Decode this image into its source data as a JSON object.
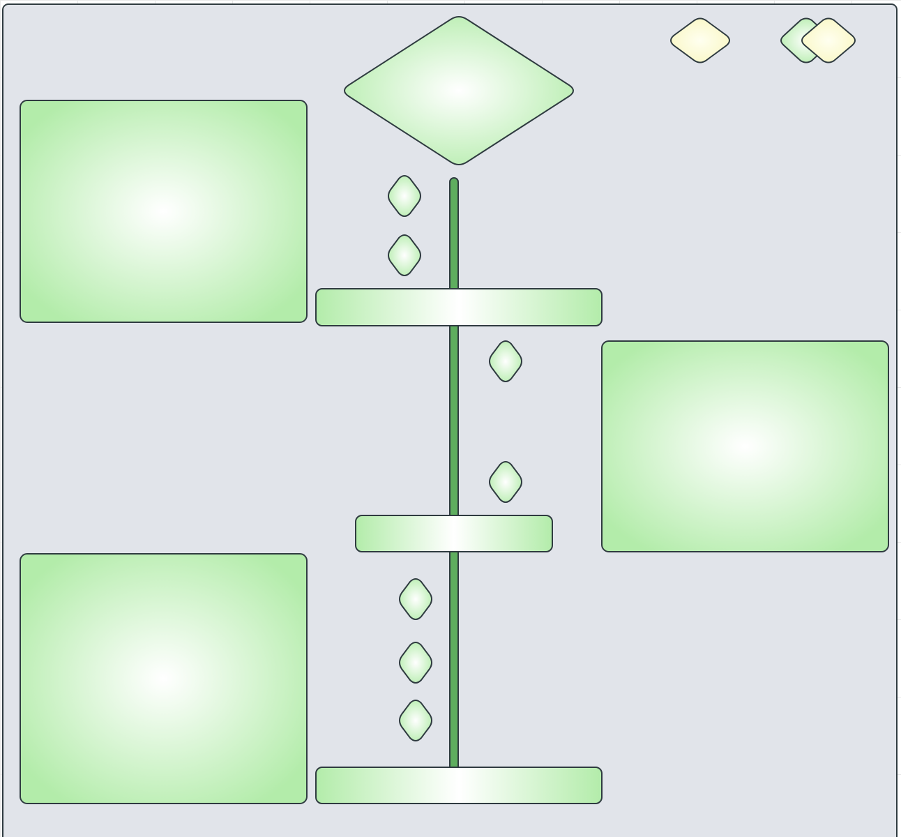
{
  "diagram": {
    "type": "activity-diagram",
    "colors": {
      "canvas_bg": "#ffffff",
      "grid": "#e8e8e8",
      "pool_fill": "#e1e4ea",
      "stroke": "#2f3b40",
      "node_center": "#ffffff",
      "node_edge": "#b3ecaa",
      "bar": "#5fae5f",
      "accent_center": "#fffff0",
      "accent_edge": "#f9f7c3"
    },
    "nodes": [
      {
        "id": "container",
        "kind": "container"
      },
      {
        "id": "legend-decision-yellow",
        "kind": "decision",
        "variant": "accent"
      },
      {
        "id": "legend-decision-green",
        "kind": "decision"
      },
      {
        "id": "legend-decision-yellow-front",
        "kind": "decision",
        "variant": "accent"
      },
      {
        "id": "start-decision",
        "kind": "decision"
      },
      {
        "id": "activity-top-left",
        "kind": "activity"
      },
      {
        "id": "activity-right",
        "kind": "activity"
      },
      {
        "id": "activity-bottom-left",
        "kind": "activity"
      },
      {
        "id": "sync-bar-1",
        "kind": "fork-join"
      },
      {
        "id": "sync-bar-2",
        "kind": "fork-join"
      },
      {
        "id": "sync-bar-3",
        "kind": "fork-join"
      },
      {
        "id": "guard-1",
        "kind": "guard"
      },
      {
        "id": "guard-2",
        "kind": "guard"
      },
      {
        "id": "guard-3",
        "kind": "guard"
      },
      {
        "id": "guard-4",
        "kind": "guard"
      },
      {
        "id": "guard-5",
        "kind": "guard"
      },
      {
        "id": "guard-6",
        "kind": "guard"
      },
      {
        "id": "guard-7",
        "kind": "guard"
      }
    ],
    "edges": [
      {
        "id": "flow-main",
        "from": "start-decision",
        "to": "sync-bar-3",
        "kind": "flow"
      }
    ]
  }
}
